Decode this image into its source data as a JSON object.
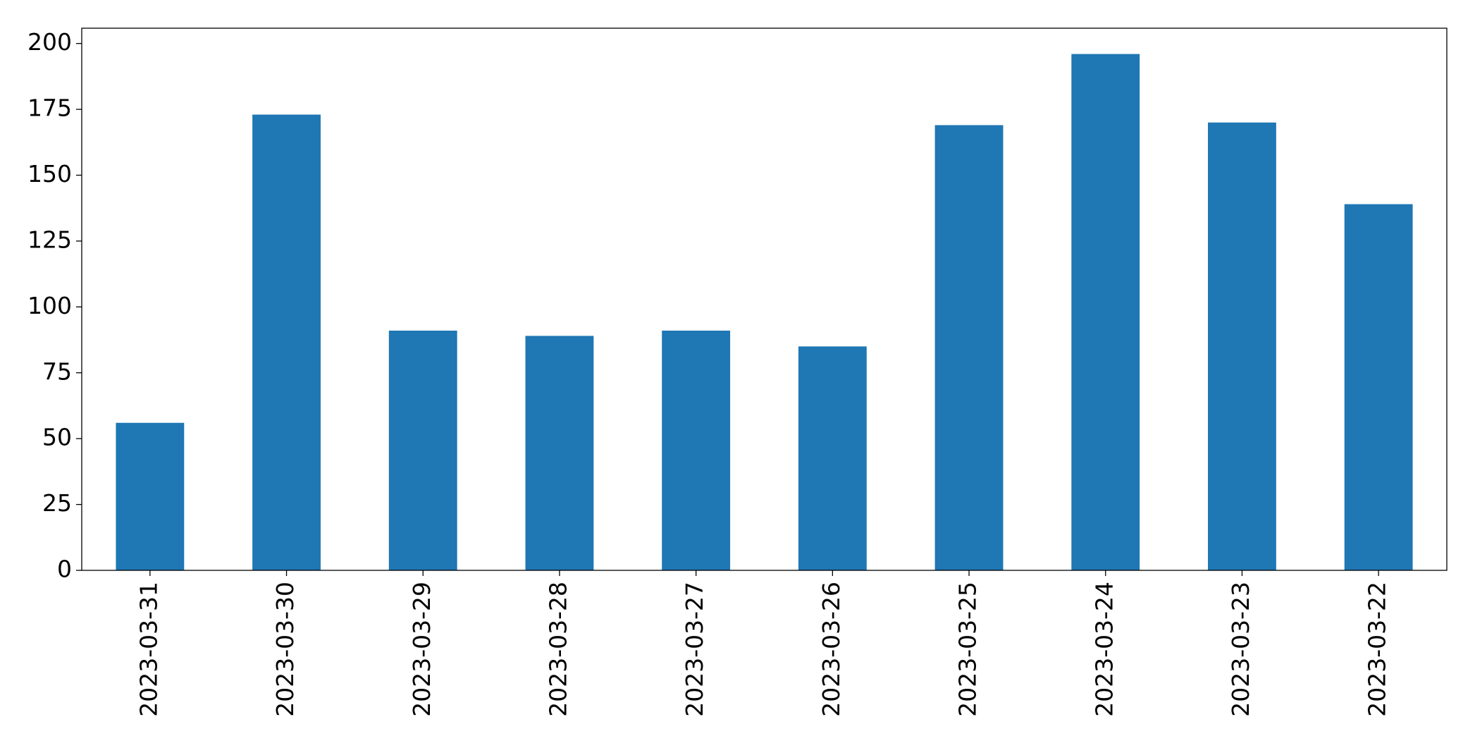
{
  "chart_data": {
    "type": "bar",
    "categories": [
      "2023-03-31",
      "2023-03-30",
      "2023-03-29",
      "2023-03-28",
      "2023-03-27",
      "2023-03-26",
      "2023-03-25",
      "2023-03-24",
      "2023-03-23",
      "2023-03-22"
    ],
    "values": [
      56,
      173,
      91,
      89,
      91,
      85,
      169,
      196,
      170,
      139
    ],
    "color": "#1f77b4",
    "ylim": [
      0,
      205.8
    ],
    "yticks": [
      0,
      25,
      50,
      75,
      100,
      125,
      150,
      175,
      200
    ],
    "grid": false
  }
}
